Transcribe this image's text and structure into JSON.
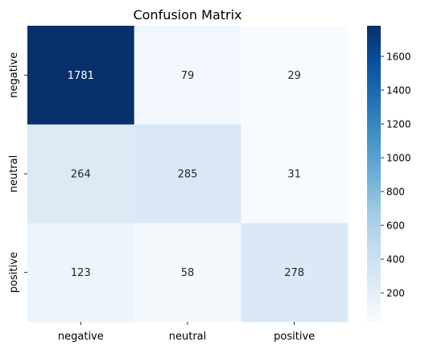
{
  "chart_data": {
    "type": "heatmap",
    "title": "Confusion Matrix",
    "xlabel": "",
    "ylabel": "",
    "x_categories": [
      "negative",
      "neutral",
      "positive"
    ],
    "y_categories": [
      "negative",
      "neutral",
      "positive"
    ],
    "values": [
      [
        1781,
        79,
        29
      ],
      [
        264,
        285,
        31
      ],
      [
        123,
        58,
        278
      ]
    ],
    "colormap": "Blues",
    "vmin": 29,
    "vmax": 1781,
    "colorbar": {
      "ticks": [
        200,
        400,
        600,
        800,
        1000,
        1200,
        1400,
        1600
      ],
      "tick_labels": [
        "200",
        "400",
        "600",
        "800",
        "1000",
        "1200",
        "1400",
        "1600"
      ]
    }
  }
}
